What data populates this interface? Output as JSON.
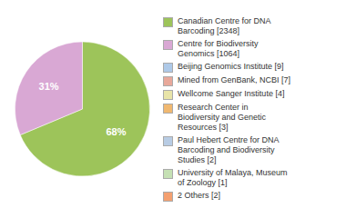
{
  "chart_data": {
    "type": "pie",
    "categories": [
      "Canadian Centre for DNA\nBarcoding [2348]",
      "Centre for Biodiversity\nGenomics [1064]",
      "Beijing Genomics Institute [9]",
      "Mined from GenBank, NCBI [7]",
      "Wellcome Sanger Institute [4]",
      "Research Center in\nBiodiversity and Genetic\nResources [3]",
      "Paul Hebert Centre for DNA\nBarcoding and Biodiversity\nStudies [2]",
      "University of Malaya, Museum\nof Zoology [1]",
      "2 Others [2]"
    ],
    "values": [
      68,
      31,
      0,
      0,
      0,
      0,
      0,
      0,
      0
    ],
    "value_labels": [
      "68%",
      "31%",
      null,
      null,
      null,
      null,
      null,
      null,
      null
    ],
    "colors": [
      "#9dc45a",
      "#d9a8d4",
      "#aec9e8",
      "#e8a89a",
      "#e8e4a8",
      "#f0b870",
      "#b8cce4",
      "#c5e0b4",
      "#f4a070"
    ],
    "data_labels": true,
    "legend": "right"
  }
}
